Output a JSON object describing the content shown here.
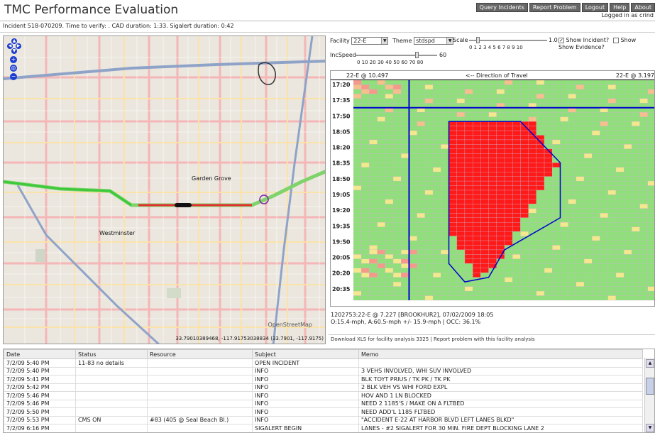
{
  "header": {
    "title": "TMC Performance Evaluation",
    "nav": [
      "Query Incidents",
      "Report Problem",
      "Logout",
      "Help",
      "About"
    ],
    "logged_in": "Logged in as crind",
    "incident_info": "Incident 518-070209. Time to verify: . CAD duration: 1:33. Sigalert duration: 0:42"
  },
  "map": {
    "labels": {
      "garden_grove": "Garden Grove",
      "westminster": "Westminster",
      "osm": "OpenStreetMap"
    },
    "coords": "33.79010389468, -117.91753038834 (33.7901, -117.9175)",
    "icons": [
      "pan-up-icon",
      "pan-left-icon",
      "pan-right-icon",
      "pan-down-icon",
      "zoom-in-icon",
      "zoom-world-icon",
      "zoom-out-icon"
    ]
  },
  "controls": {
    "facility_label": "Facility",
    "facility_value": "22-E",
    "theme_label": "Theme",
    "theme_value": "stdspd",
    "scale_label": "Scale",
    "scale_max": "1.0",
    "scale_ticks": "0 1 2 3 4 5 6 7 8 9 10",
    "incspeed_label": "IncSpeed",
    "incspeed_max": "60",
    "incspeed_ticks": "0 10 20 30 40 50 60 70 80",
    "show_incident_label": "Show Incident?",
    "show_incident_checked": true,
    "show_evidence_label": "Show Evidence?",
    "show_evidence_checked": false
  },
  "heatmap": {
    "left_label": "22-E @ 10.497",
    "direction_label": "<-- Direction of Travel",
    "right_label": "22-E @ 3.197",
    "times": [
      "17:20",
      "17:35",
      "17:50",
      "18:05",
      "18:20",
      "18:35",
      "18:50",
      "19:05",
      "19:20",
      "19:35",
      "19:50",
      "20:05",
      "20:20",
      "20:35"
    ],
    "colors": {
      "green": "#8fe07a",
      "yellow": "#f3e98c",
      "orange": "#f5c08c",
      "salmon": "#f59a8a",
      "red": "#ff1a1a",
      "blue": "#0000d0"
    }
  },
  "details": {
    "line1": "1202753:22-E @ 7.227 [BROOKHUR2], 07/02/2009 18:05",
    "line2": "O:15.4-mph, A:60.5-mph +/- 15.9-mph | OCC: 36.1%",
    "download_link": "Download XLS for facility analysis 3325",
    "report_link": "Report problem with this facility analysis"
  },
  "log": {
    "columns": [
      "Date",
      "Status",
      "Resource",
      "Subject",
      "Memo"
    ],
    "rows": [
      [
        "7/2/09 5:40 PM",
        "11-83 no details",
        "",
        "OPEN INCIDENT",
        ""
      ],
      [
        "7/2/09 5:40 PM",
        "",
        "",
        "INFO",
        "3 VEHS INVOLVED, WHI SUV INVOLVED"
      ],
      [
        "7/2/09 5:41 PM",
        "",
        "",
        "INFO",
        "BLK TOYT PRIUS / TK PK / TK PK"
      ],
      [
        "7/2/09 5:42 PM",
        "",
        "",
        "INFO",
        "2 BLK VEH VS WHI FORD EXPL"
      ],
      [
        "7/2/09 5:46 PM",
        "",
        "",
        "INFO",
        "HOV AND 1 LN BLOCKED"
      ],
      [
        "7/2/09 5:46 PM",
        "",
        "",
        "INFO",
        "NEED 2 1185'S / MAKE ON A FLTBED"
      ],
      [
        "7/2/09 5:50 PM",
        "",
        "",
        "INFO",
        "NEED ADD'L 1185 FLTBED"
      ],
      [
        "7/2/09 5:53 PM",
        "CMS ON",
        "#83 (405 @ Seal Beach Bl.)",
        "INFO",
        "\"ACCIDENT E-22 AT HARBOR BLVD LEFT LANES BLKD\""
      ],
      [
        "7/2/09 6:16 PM",
        "",
        "",
        "SIGALERT BEGIN",
        "LANES - #2 SIGALERT FOR 30 MIN. FIRE DEPT BLOCKING LANE 2"
      ]
    ]
  }
}
